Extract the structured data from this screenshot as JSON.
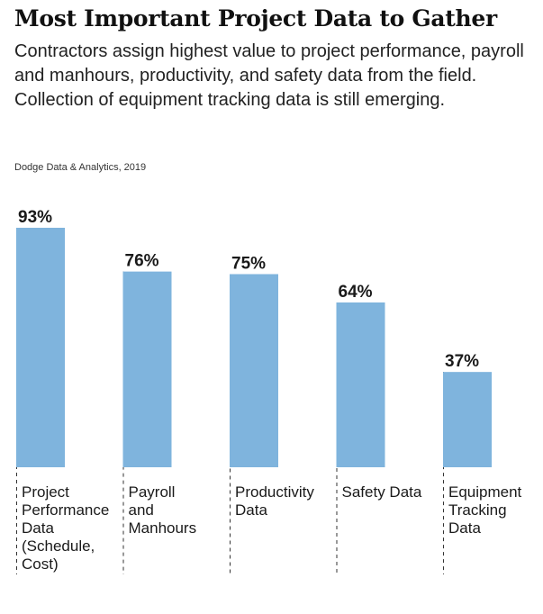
{
  "header": {
    "title": "Most Important Project Data to Gather",
    "subtitle": "Contractors assign highest value to project performance, payroll and manhours, productivity, and safety data from the field. Collection of equipment tracking data is still emerging.",
    "source": "Dodge Data & Analytics, 2019"
  },
  "colors": {
    "bar": "#7fb4dd",
    "text": "#1a1a1a",
    "guide": "#333333"
  },
  "chart_data": {
    "type": "bar",
    "title": "Most Important Project Data to Gather",
    "xlabel": "",
    "ylabel": "",
    "ylim": [
      0,
      100
    ],
    "grid": false,
    "legend": "none",
    "categories": [
      [
        "Project",
        "Performance",
        "Data",
        "(Schedule,",
        "Cost)"
      ],
      [
        "Payroll",
        "and",
        "Manhours"
      ],
      [
        "Productivity",
        "Data"
      ],
      [
        "Safety Data"
      ],
      [
        "Equipment",
        "Tracking",
        "Data"
      ]
    ],
    "values": [
      93,
      76,
      75,
      64,
      37
    ],
    "value_labels": [
      "93%",
      "76%",
      "75%",
      "64%",
      "37%"
    ]
  }
}
